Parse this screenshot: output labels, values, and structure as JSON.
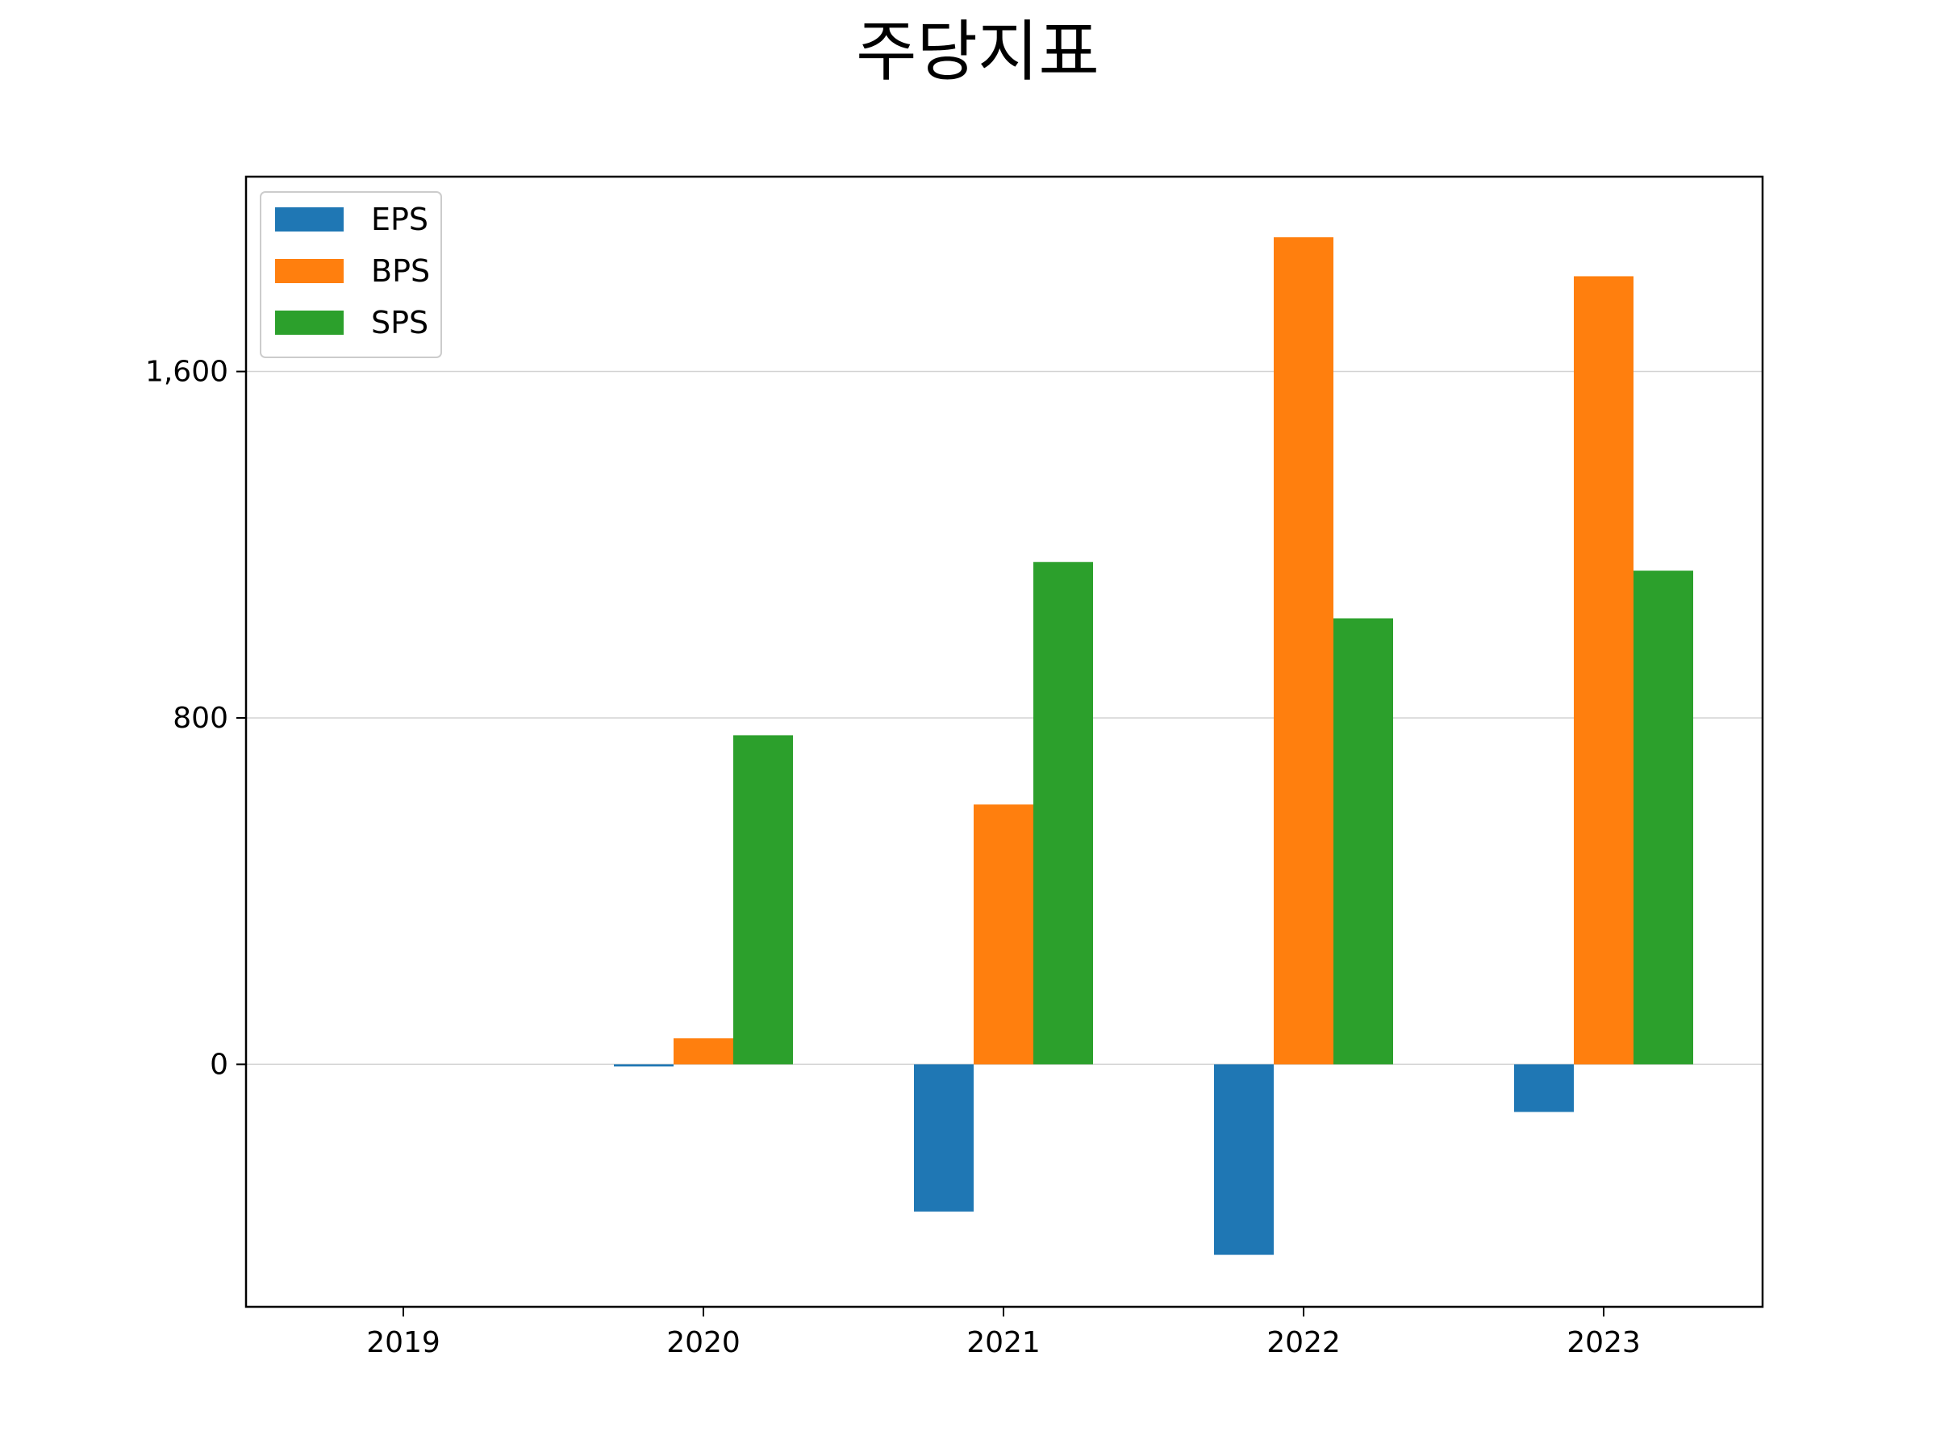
{
  "chart_data": {
    "type": "bar",
    "title": "주당지표",
    "xlabel": "",
    "ylabel": "",
    "categories": [
      "2019",
      "2020",
      "2021",
      "2022",
      "2023"
    ],
    "series": [
      {
        "name": "EPS",
        "color": "#1f77b4",
        "values": [
          0,
          -5,
          -340,
          -440,
          -110
        ]
      },
      {
        "name": "BPS",
        "color": "#ff7f0e",
        "values": [
          0,
          60,
          600,
          1910,
          1820
        ]
      },
      {
        "name": "SPS",
        "color": "#2ca02c",
        "values": [
          0,
          760,
          1160,
          1030,
          1140
        ]
      }
    ],
    "ylim": [
      -560,
      2050
    ],
    "yticks": [
      0,
      800,
      1600
    ],
    "ytick_labels": [
      "0",
      "800",
      "1,600"
    ],
    "grid": "horizontal",
    "legend_position": "top-left"
  }
}
